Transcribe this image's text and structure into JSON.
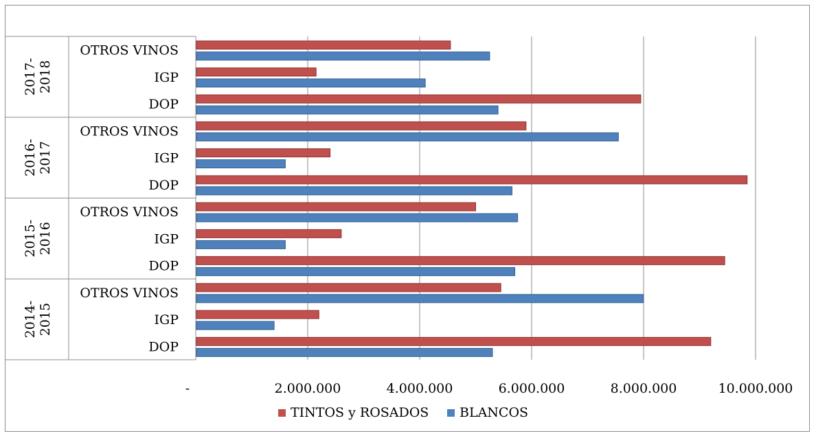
{
  "chart_data": {
    "type": "bar",
    "orientation": "horizontal",
    "value_axis": {
      "min": 0,
      "max": 10000000,
      "ticks": [
        0,
        2000000,
        4000000,
        6000000,
        8000000,
        10000000
      ],
      "tick_labels": [
        "-",
        "2.000.000",
        "4.000.000",
        "6.000.000",
        "8.000.000",
        "10.000.000"
      ]
    },
    "grid": true,
    "legend_position": "bottom",
    "groups": [
      {
        "label": "2014-2015",
        "label_lines": [
          "2014-",
          "2015"
        ],
        "categories": [
          "DOP",
          "IGP",
          "OTROS VINOS"
        ],
        "series": [
          {
            "name": "TINTOS y ROSADOS",
            "values": [
              9200000,
              2200000,
              5450000
            ]
          },
          {
            "name": "BLANCOS",
            "values": [
              5300000,
              1400000,
              8000000
            ]
          }
        ]
      },
      {
        "label": "2015-2016",
        "label_lines": [
          "2015-",
          "2016"
        ],
        "categories": [
          "DOP",
          "IGP",
          "OTROS VINOS"
        ],
        "series": [
          {
            "name": "TINTOS y ROSADOS",
            "values": [
              9450000,
              2600000,
              5000000
            ]
          },
          {
            "name": "BLANCOS",
            "values": [
              5700000,
              1600000,
              5750000
            ]
          }
        ]
      },
      {
        "label": "2016-2017",
        "label_lines": [
          "2016-",
          "2017"
        ],
        "categories": [
          "DOP",
          "IGP",
          "OTROS VINOS"
        ],
        "series": [
          {
            "name": "TINTOS y ROSADOS",
            "values": [
              9850000,
              2400000,
              5900000
            ]
          },
          {
            "name": "BLANCOS",
            "values": [
              5650000,
              1600000,
              7550000
            ]
          }
        ]
      },
      {
        "label": "2017-2018",
        "label_lines": [
          "2017-",
          "2018"
        ],
        "categories": [
          "DOP",
          "IGP",
          "OTROS VINOS"
        ],
        "series": [
          {
            "name": "TINTOS y ROSADOS",
            "values": [
              7950000,
              2150000,
              4550000
            ]
          },
          {
            "name": "BLANCOS",
            "values": [
              5400000,
              4100000,
              5250000
            ]
          }
        ]
      }
    ],
    "legend": [
      {
        "name": "TINTOS y ROSADOS",
        "color": "#c0504d"
      },
      {
        "name": "BLANCOS",
        "color": "#4f81bd"
      }
    ]
  }
}
